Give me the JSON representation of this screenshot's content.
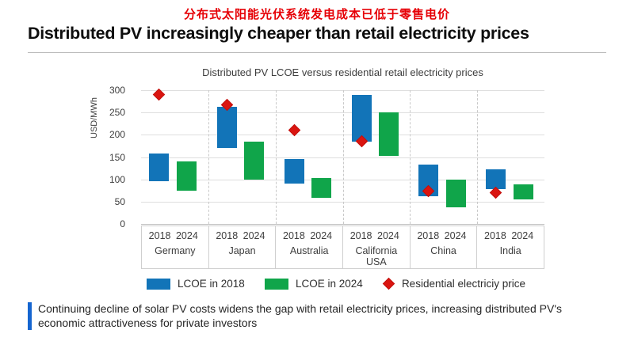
{
  "header": {
    "title_cn": "分布式太阳能光伏系统发电成本已低于零售电价",
    "title_en": "Distributed PV increasingly cheaper than retail electricity prices"
  },
  "chart_data": {
    "type": "bar",
    "subtype": "floating-range-bars-with-diamond-markers",
    "title": "Distributed PV LCOE versus residential retail electricity prices",
    "ylabel": "USD/MWh",
    "ylim": [
      0,
      300
    ],
    "yticks": [
      300,
      250,
      200,
      150,
      100,
      50,
      0
    ],
    "grid": "horizontal solid gridlines, dashed vertical country separators",
    "legend_position": "bottom",
    "year_labels": [
      "2018",
      "2024"
    ],
    "categories": [
      "Germany",
      "Japan",
      "Australia",
      "California\nUSA",
      "China",
      "India"
    ],
    "series": [
      {
        "name": "LCOE in 2018",
        "kind": "range-bar",
        "color": "#1274b8",
        "ranges": [
          [
            95,
            158
          ],
          [
            170,
            263
          ],
          [
            90,
            145
          ],
          [
            185,
            290
          ],
          [
            62,
            134
          ],
          [
            78,
            122
          ]
        ]
      },
      {
        "name": "LCOE in 2024",
        "kind": "range-bar",
        "color": "#10a54a",
        "ranges": [
          [
            75,
            140
          ],
          [
            100,
            185
          ],
          [
            58,
            103
          ],
          [
            152,
            250
          ],
          [
            38,
            100
          ],
          [
            55,
            88
          ]
        ]
      },
      {
        "name": "Residential electriciy price",
        "kind": "diamond-marker",
        "color": "#da1510",
        "values": [
          290,
          267,
          210,
          185,
          74,
          70
        ]
      }
    ]
  },
  "takeaway": {
    "text": "Continuing decline of solar PV costs widens the gap with retail electricity prices, increasing distributed PV's economic attractiveness for private investors",
    "accent_color": "#1565d0"
  }
}
